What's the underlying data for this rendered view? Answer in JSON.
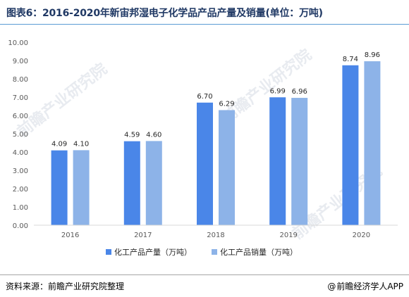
{
  "title": "图表6：2016-2020年新宙邦湿电子化学品产品产量及销量(单位：万吨)",
  "source": "资料来源：前瞻产业研究院整理",
  "credit": "前瞻经济学人APP",
  "credit_icon": "at-icon",
  "watermark": "前瞻产业研究院",
  "colors": {
    "title": "#1f3864",
    "series1": "#4a86e8",
    "series2": "#8db3e8",
    "axis": "#d9d9d9"
  },
  "chart_data": {
    "type": "bar",
    "categories": [
      "2016",
      "2017",
      "2018",
      "2019",
      "2020"
    ],
    "series": [
      {
        "name": "化工产品产量（万吨）",
        "values": [
          4.09,
          4.59,
          6.7,
          6.99,
          8.74
        ],
        "labels": [
          "4.09",
          "4.59",
          "6.70",
          "6.99",
          "8.74"
        ]
      },
      {
        "name": "化工产品销量（万吨）",
        "values": [
          4.1,
          4.6,
          6.29,
          6.96,
          8.96
        ],
        "labels": [
          "4.10",
          "4.60",
          "6.29",
          "6.96",
          "8.96"
        ]
      }
    ],
    "ylim": [
      0,
      10
    ],
    "yticks": [
      "0.00",
      "1.00",
      "2.00",
      "3.00",
      "4.00",
      "5.00",
      "6.00",
      "7.00",
      "8.00",
      "9.00",
      "10.00"
    ],
    "grid": false,
    "legend_position": "bottom"
  }
}
